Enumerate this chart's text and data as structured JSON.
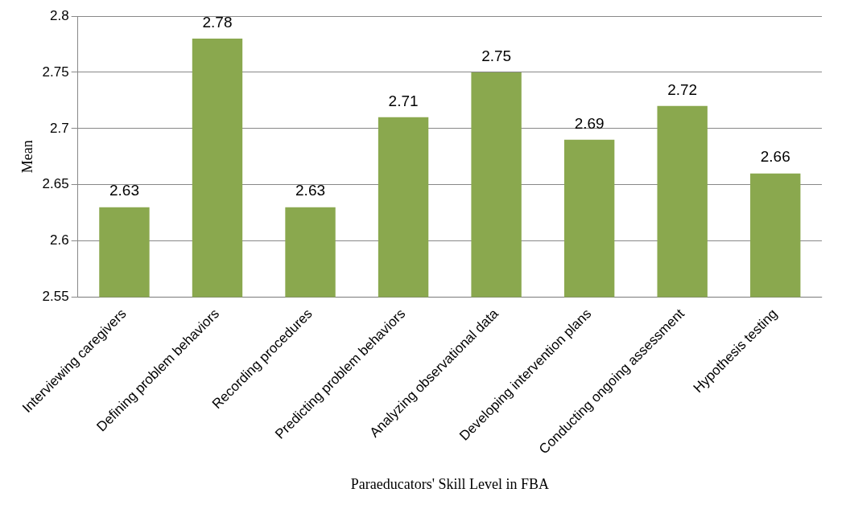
{
  "chart_data": {
    "type": "bar",
    "xlabel": "Paraeducators' Skill Level in FBA",
    "ylabel": "Mean",
    "categories": [
      "Interviewing caregivers",
      "Defining problem behaviors",
      "Recording procedures",
      "Predicting problem behaviors",
      "Analyzing observational data",
      "Developing intervention plans",
      "Conducting ongoing assessment",
      "Hypothesis testing"
    ],
    "values": [
      2.63,
      2.78,
      2.63,
      2.71,
      2.75,
      2.69,
      2.72,
      2.66
    ],
    "color": "#8aa84e",
    "ylim": [
      2.55,
      2.8
    ],
    "yticks": [
      2.55,
      2.6,
      2.65,
      2.7,
      2.75,
      2.8
    ],
    "grid": "y",
    "legend": false,
    "data_labels": true
  }
}
